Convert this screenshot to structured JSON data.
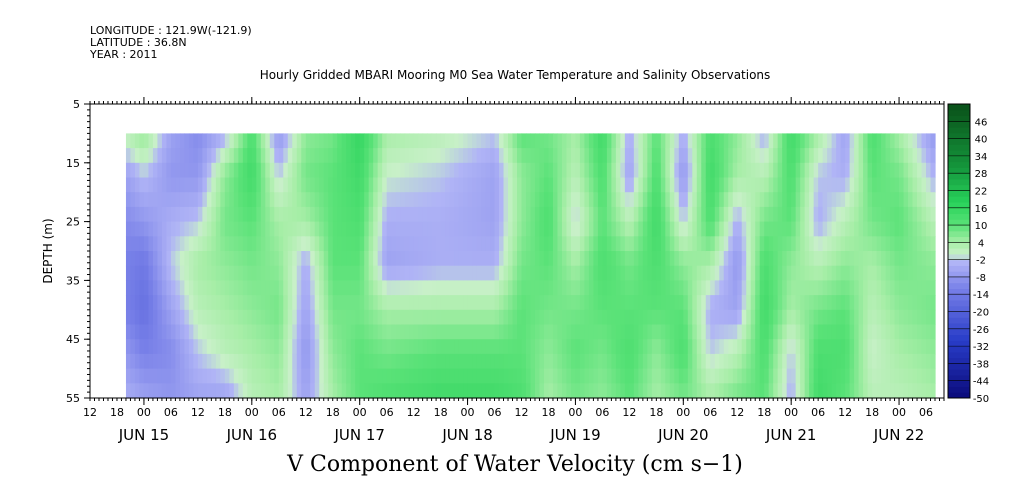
{
  "meta": {
    "longitude": "LONGITUDE : 121.9W(-121.9)",
    "latitude": "LATITUDE : 36.8N",
    "year": "YEAR : 2011"
  },
  "chart_data": {
    "type": "heatmap",
    "title": "Hourly Gridded MBARI Mooring M0 Sea Water Temperature and Salinity Observations",
    "bottom_title": "V Component of Water Velocity (cm s−1)",
    "ylabel": "DEPTH (m)",
    "ylim": [
      55,
      5
    ],
    "y_ticks": [
      "5",
      "15",
      "25",
      "35",
      "45",
      "55"
    ],
    "x_hour_ticks": [
      "12",
      "18",
      "00",
      "06",
      "12",
      "18",
      "00",
      "06",
      "12",
      "18",
      "00",
      "06",
      "12",
      "18",
      "00",
      "06",
      "12",
      "18",
      "00",
      "06",
      "12",
      "18",
      "00",
      "06",
      "12",
      "18",
      "00",
      "06",
      "12",
      "18",
      "00",
      "06"
    ],
    "x_date_labels": [
      {
        "label": "JUN 15",
        "hour": 0
      },
      {
        "label": "JUN 16",
        "hour": 24
      },
      {
        "label": "JUN 17",
        "hour": 48
      },
      {
        "label": "JUN 18",
        "hour": 72
      },
      {
        "label": "JUN 19",
        "hour": 96
      },
      {
        "label": "JUN 20",
        "hour": 120
      },
      {
        "label": "JUN 21",
        "hour": 144
      },
      {
        "label": "JUN 22",
        "hour": 168
      }
    ],
    "time_start_hour": -12,
    "time_end_hour": 178,
    "data_depth_range": [
      10,
      55
    ],
    "data_time_range_hours": [
      -4,
      176
    ],
    "colorbar_labels": [
      "46",
      "40",
      "34",
      "28",
      "22",
      "16",
      "10",
      "4",
      "-2",
      "-8",
      "-14",
      "-20",
      "-26",
      "-32",
      "-38",
      "-44",
      "-50"
    ],
    "colorbar_range": [
      -50,
      52
    ],
    "colors": {
      "strong_negative": "#0a0a7a",
      "negative": "#9aa0f0",
      "near_zero": "#b8f0b8",
      "positive": "#3ee07a",
      "strong_positive": "#0a5a1a"
    },
    "velocity_field_cm_s": [
      {
        "hour": -4,
        "values": [
          2,
          -6,
          -10,
          -12,
          -12,
          -8,
          -4
        ]
      },
      {
        "hour": 0,
        "values": [
          6,
          -2,
          -8,
          -14,
          -16,
          -12,
          -6
        ]
      },
      {
        "hour": 6,
        "values": [
          -6,
          -8,
          -4,
          -2,
          -6,
          -10,
          -8
        ]
      },
      {
        "hour": 12,
        "values": [
          -10,
          -8,
          -2,
          4,
          2,
          -2,
          -6
        ]
      },
      {
        "hour": 18,
        "values": [
          -4,
          6,
          8,
          6,
          4,
          2,
          -6
        ]
      },
      {
        "hour": 24,
        "values": [
          12,
          14,
          10,
          8,
          6,
          4,
          2
        ]
      },
      {
        "hour": 30,
        "values": [
          -8,
          -2,
          4,
          6,
          8,
          6,
          4
        ]
      },
      {
        "hour": 36,
        "values": [
          6,
          8,
          4,
          -4,
          -6,
          -8,
          -6
        ]
      },
      {
        "hour": 42,
        "values": [
          8,
          10,
          10,
          10,
          8,
          6,
          4
        ]
      },
      {
        "hour": 48,
        "values": [
          16,
          14,
          12,
          10,
          8,
          10,
          10
        ]
      },
      {
        "hour": 54,
        "values": [
          4,
          0,
          -4,
          -6,
          4,
          8,
          12
        ]
      },
      {
        "hour": 66,
        "values": [
          2,
          -2,
          -4,
          -4,
          4,
          10,
          14
        ]
      },
      {
        "hour": 78,
        "values": [
          -2,
          -6,
          -6,
          -4,
          4,
          10,
          14
        ]
      },
      {
        "hour": 84,
        "values": [
          10,
          6,
          6,
          8,
          10,
          10,
          12
        ]
      },
      {
        "hour": 90,
        "values": [
          8,
          10,
          12,
          10,
          8,
          6,
          4
        ]
      },
      {
        "hour": 96,
        "values": [
          4,
          2,
          -2,
          4,
          8,
          10,
          8
        ]
      },
      {
        "hour": 102,
        "values": [
          14,
          12,
          10,
          12,
          10,
          8,
          6
        ]
      },
      {
        "hour": 108,
        "values": [
          -4,
          -6,
          2,
          8,
          10,
          12,
          10
        ]
      },
      {
        "hour": 114,
        "values": [
          10,
          12,
          14,
          12,
          10,
          6,
          4
        ]
      },
      {
        "hour": 120,
        "values": [
          -4,
          -8,
          -2,
          6,
          10,
          12,
          8
        ]
      },
      {
        "hour": 126,
        "values": [
          12,
          14,
          12,
          4,
          -4,
          -2,
          4
        ]
      },
      {
        "hour": 132,
        "values": [
          6,
          4,
          -4,
          -8,
          -6,
          2,
          8
        ]
      },
      {
        "hour": 138,
        "values": [
          -4,
          2,
          8,
          12,
          14,
          12,
          10
        ]
      },
      {
        "hour": 144,
        "values": [
          14,
          12,
          10,
          6,
          4,
          -2,
          -4
        ]
      },
      {
        "hour": 150,
        "values": [
          4,
          -2,
          -4,
          2,
          8,
          12,
          14
        ]
      },
      {
        "hour": 156,
        "values": [
          -6,
          -4,
          2,
          6,
          10,
          12,
          10
        ]
      },
      {
        "hour": 162,
        "values": [
          12,
          10,
          8,
          4,
          2,
          0,
          2
        ]
      },
      {
        "hour": 168,
        "values": [
          4,
          8,
          10,
          8,
          6,
          4,
          2
        ]
      },
      {
        "hour": 176,
        "values": [
          -8,
          -4,
          2,
          6,
          8,
          6,
          4
        ]
      }
    ],
    "velocity_field_depths_m": [
      10,
      17,
      25,
      32,
      40,
      47,
      55
    ]
  }
}
